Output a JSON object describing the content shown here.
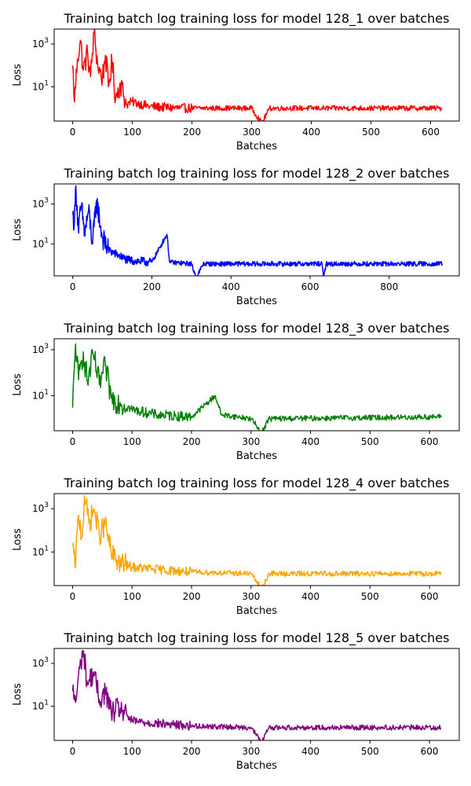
{
  "chart_data": [
    {
      "type": "line",
      "title": "Training batch log training loss for model 128_1 over batches",
      "xlabel": "Batches",
      "ylabel": "Loss",
      "yscale": "log",
      "xlim": [
        -31,
        648
      ],
      "ylim": [
        0.25,
        5000
      ],
      "xticks": [
        0,
        100,
        200,
        300,
        400,
        500,
        600
      ],
      "yticks": [
        {
          "value": 1000,
          "base": "10",
          "exp": "3"
        },
        {
          "value": 10,
          "base": "10",
          "exp": "1"
        }
      ],
      "grid": false,
      "legend": "none",
      "series": [
        {
          "color": "#ff0000",
          "n": 620,
          "keypoints": [
            [
              0,
              100
            ],
            [
              3,
              2
            ],
            [
              8,
              200
            ],
            [
              13,
              1500
            ],
            [
              18,
              60
            ],
            [
              25,
              400
            ],
            [
              30,
              30
            ],
            [
              36,
              3500
            ],
            [
              42,
              100
            ],
            [
              50,
              25
            ],
            [
              55,
              300
            ],
            [
              60,
              10
            ],
            [
              66,
              150
            ],
            [
              72,
              3
            ],
            [
              80,
              15
            ],
            [
              90,
              1.5
            ],
            [
              100,
              2
            ],
            [
              130,
              1.2
            ],
            [
              180,
              1
            ],
            [
              300,
              1
            ],
            [
              317,
              0.2
            ],
            [
              330,
              1
            ],
            [
              619,
              1
            ]
          ]
        }
      ]
    },
    {
      "type": "line",
      "title": "Training batch log training loss for model 128_2 over batches",
      "xlabel": "Batches",
      "ylabel": "Loss",
      "yscale": "log",
      "xlim": [
        -47,
        977
      ],
      "ylim": [
        0.25,
        10000
      ],
      "xticks": [
        0,
        200,
        400,
        600,
        800
      ],
      "yticks": [
        {
          "value": 1000,
          "base": "10",
          "exp": "3"
        },
        {
          "value": 10,
          "base": "10",
          "exp": "1"
        }
      ],
      "grid": false,
      "legend": "none",
      "series": [
        {
          "color": "#0000ff",
          "n": 935,
          "keypoints": [
            [
              0,
              300
            ],
            [
              4,
              100
            ],
            [
              8,
              8000
            ],
            [
              14,
              50
            ],
            [
              22,
              800
            ],
            [
              30,
              30
            ],
            [
              40,
              500
            ],
            [
              50,
              10
            ],
            [
              60,
              1500
            ],
            [
              75,
              20
            ],
            [
              90,
              5
            ],
            [
              110,
              3
            ],
            [
              140,
              1.5
            ],
            [
              200,
              1.2
            ],
            [
              238,
              30
            ],
            [
              245,
              1.2
            ],
            [
              300,
              1
            ],
            [
              312,
              0.2
            ],
            [
              330,
              1
            ],
            [
              630,
              1
            ],
            [
              634,
              0.2
            ],
            [
              640,
              1
            ],
            [
              934,
              1
            ]
          ]
        }
      ]
    },
    {
      "type": "line",
      "title": "Training batch log training loss for model 128_3 over batches",
      "xlabel": "Batches",
      "ylabel": "Loss",
      "yscale": "log",
      "xlim": [
        -31,
        650
      ],
      "ylim": [
        0.3,
        3000
      ],
      "xticks": [
        0,
        100,
        200,
        300,
        400,
        500,
        600
      ],
      "yticks": [
        {
          "value": 1000,
          "base": "10",
          "exp": "3"
        },
        {
          "value": 10,
          "base": "10",
          "exp": "1"
        }
      ],
      "grid": false,
      "legend": "none",
      "series": [
        {
          "color": "#008000",
          "n": 621,
          "keypoints": [
            [
              0,
              3
            ],
            [
              5,
              1800
            ],
            [
              10,
              50
            ],
            [
              18,
              800
            ],
            [
              25,
              40
            ],
            [
              35,
              600
            ],
            [
              45,
              30
            ],
            [
              55,
              200
            ],
            [
              65,
              8
            ],
            [
              80,
              5
            ],
            [
              100,
              2.5
            ],
            [
              140,
              1.5
            ],
            [
              200,
              1.2
            ],
            [
              240,
              10
            ],
            [
              250,
              1.5
            ],
            [
              300,
              1
            ],
            [
              318,
              0.25
            ],
            [
              330,
              1
            ],
            [
              620,
              1.2
            ]
          ]
        }
      ]
    },
    {
      "type": "line",
      "title": "Training batch log training loss for model 128_4 over batches",
      "xlabel": "Batches",
      "ylabel": "Loss",
      "yscale": "log",
      "xlim": [
        -31,
        650
      ],
      "ylim": [
        0.28,
        5000
      ],
      "xticks": [
        0,
        100,
        200,
        300,
        400,
        500,
        600
      ],
      "yticks": [
        {
          "value": 1000,
          "base": "10",
          "exp": "3"
        },
        {
          "value": 10,
          "base": "10",
          "exp": "1"
        }
      ],
      "grid": false,
      "legend": "none",
      "series": [
        {
          "color": "#ffa500",
          "n": 621,
          "keypoints": [
            [
              0,
              20
            ],
            [
              4,
              2
            ],
            [
              10,
              500
            ],
            [
              16,
              50
            ],
            [
              20,
              4000
            ],
            [
              28,
              200
            ],
            [
              36,
              1000
            ],
            [
              45,
              60
            ],
            [
              55,
              200
            ],
            [
              65,
              8
            ],
            [
              80,
              3
            ],
            [
              100,
              2
            ],
            [
              150,
              1.5
            ],
            [
              200,
              1.2
            ],
            [
              300,
              1
            ],
            [
              318,
              0.2
            ],
            [
              330,
              1
            ],
            [
              620,
              1
            ]
          ]
        }
      ]
    },
    {
      "type": "line",
      "title": "Training batch log training loss for model 128_5 over batches",
      "xlabel": "Batches",
      "ylabel": "Loss",
      "yscale": "log",
      "xlim": [
        -31,
        650
      ],
      "ylim": [
        0.25,
        5000
      ],
      "xticks": [
        0,
        100,
        200,
        300,
        400,
        500,
        600
      ],
      "yticks": [
        {
          "value": 1000,
          "base": "10",
          "exp": "3"
        },
        {
          "value": 10,
          "base": "10",
          "exp": "1"
        }
      ],
      "grid": false,
      "legend": "none",
      "series": [
        {
          "color": "#800080",
          "n": 620,
          "keypoints": [
            [
              0,
              50
            ],
            [
              5,
              15
            ],
            [
              12,
              600
            ],
            [
              18,
              4000
            ],
            [
              25,
              100
            ],
            [
              35,
              400
            ],
            [
              45,
              20
            ],
            [
              55,
              50
            ],
            [
              65,
              5
            ],
            [
              80,
              8
            ],
            [
              100,
              2
            ],
            [
              150,
              1.5
            ],
            [
              200,
              1.2
            ],
            [
              300,
              1
            ],
            [
              318,
              0.2
            ],
            [
              330,
              1
            ],
            [
              619,
              1
            ]
          ]
        }
      ]
    }
  ]
}
